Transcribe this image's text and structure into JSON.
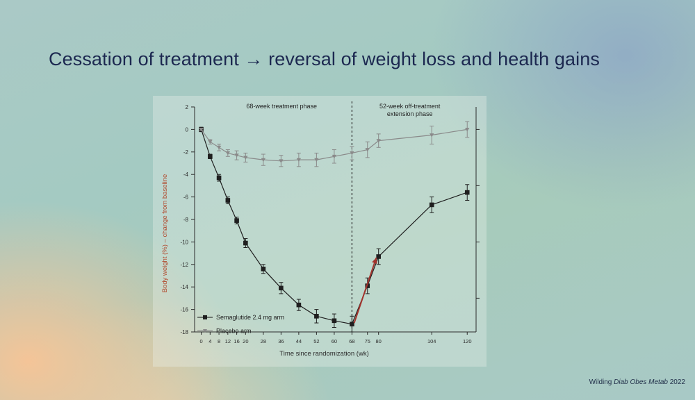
{
  "slide": {
    "title": "Cessation of treatment → reversal of weight loss and health gains",
    "credit_author": "Wilding",
    "credit_journal": "Diab Obes Metab",
    "credit_year": "2022"
  },
  "chart_data": {
    "type": "line",
    "xlabel": "Time since randomization (wk)",
    "ylabel": "Body weight (%) – change from baseline",
    "ylim": [
      -18,
      2
    ],
    "yticks": [
      2,
      0,
      -2,
      -4,
      -6,
      -8,
      -10,
      -12,
      -14,
      -16,
      -18
    ],
    "xticks": [
      0,
      4,
      8,
      12,
      16,
      20,
      28,
      36,
      44,
      52,
      60,
      68,
      75,
      80,
      104,
      120
    ],
    "xtick_labels": [
      "0",
      "4",
      "8",
      "12",
      "16",
      "20",
      "28",
      "36",
      "44",
      "52",
      "60",
      "68",
      "75",
      "80",
      "104",
      "120"
    ],
    "phase_divider_x": 68,
    "phase_labels": {
      "treatment": "68-week treatment phase",
      "extension_line1": "52-week off-treatment",
      "extension_line2": "extension phase"
    },
    "legend_position": "bottom-left",
    "arrow": {
      "color": "#a3332c",
      "from": [
        69,
        -17.2
      ],
      "to": [
        79,
        -11.4
      ]
    },
    "series": [
      {
        "name": "Semaglutide 2.4 mg arm",
        "marker": "square",
        "color": "#1f1f1f",
        "x": [
          0,
          4,
          8,
          12,
          16,
          20,
          28,
          36,
          44,
          52,
          60,
          68,
          75,
          80,
          104,
          120
        ],
        "y": [
          0,
          -2.4,
          -4.3,
          -6.3,
          -8.1,
          -10.1,
          -12.4,
          -14.1,
          -15.6,
          -16.6,
          -17.0,
          -17.3,
          -13.9,
          -11.3,
          -6.7,
          -5.6
        ],
        "err": [
          0.2,
          0.2,
          0.3,
          0.3,
          0.3,
          0.4,
          0.4,
          0.5,
          0.5,
          0.6,
          0.6,
          0.7,
          0.7,
          0.7,
          0.7,
          0.7
        ]
      },
      {
        "name": "Placebo arm",
        "marker": "triangle",
        "color": "#8a8a8a",
        "x": [
          0,
          4,
          8,
          12,
          16,
          20,
          28,
          36,
          44,
          52,
          60,
          68,
          75,
          80,
          104,
          120
        ],
        "y": [
          0,
          -1.1,
          -1.6,
          -2.1,
          -2.3,
          -2.5,
          -2.7,
          -2.8,
          -2.7,
          -2.7,
          -2.4,
          -2.1,
          -1.8,
          -1.0,
          -0.5,
          0.0
        ],
        "err": [
          0.1,
          0.2,
          0.3,
          0.3,
          0.4,
          0.4,
          0.5,
          0.5,
          0.6,
          0.6,
          0.6,
          0.6,
          0.7,
          0.6,
          0.8,
          0.7
        ]
      }
    ]
  }
}
